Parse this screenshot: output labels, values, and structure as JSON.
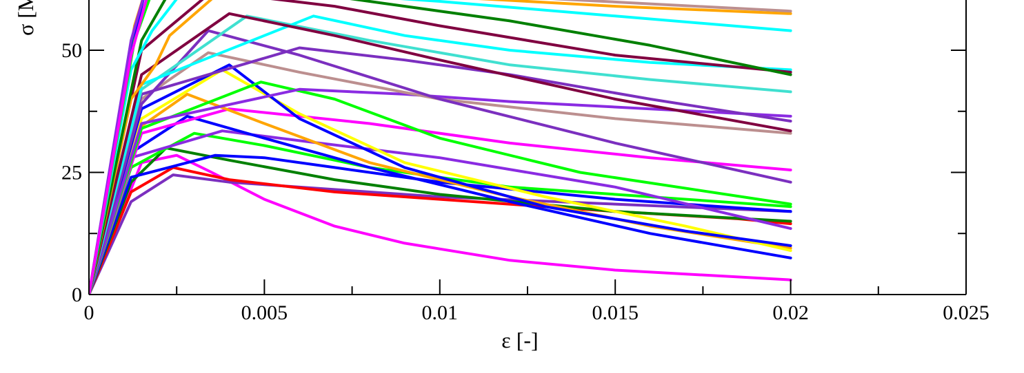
{
  "chart_data": {
    "type": "line",
    "title": "",
    "xlabel": "ε [-]",
    "ylabel": "σ [MPa]",
    "xlim": [
      0,
      0.025
    ],
    "ylim": [
      0,
      60
    ],
    "xticks": [
      0,
      0.005,
      0.01,
      0.015,
      0.02,
      0.025
    ],
    "xtick_labels": [
      "0",
      "0.005",
      "0.01",
      "0.015",
      "0.02",
      "0.025"
    ],
    "yticks": [
      0,
      25,
      50
    ],
    "ytick_labels": [
      "0",
      "25",
      "50"
    ],
    "grid": false,
    "legend": "none",
    "series": [
      {
        "color": "#ff00ff",
        "x": [
          0,
          0.0015,
          0.0025,
          0.0035,
          0.005,
          0.007,
          0.009,
          0.012,
          0.015,
          0.02
        ],
        "y": [
          0,
          27,
          28.5,
          25,
          19.5,
          14,
          10.5,
          7,
          5,
          3
        ]
      },
      {
        "color": "#7b2fbf",
        "x": [
          0,
          0.0012,
          0.0024,
          0.004,
          0.007,
          0.01,
          0.015,
          0.02
        ],
        "y": [
          0,
          19,
          24.5,
          23,
          21.5,
          20,
          18.5,
          17
        ]
      },
      {
        "color": "#ff0000",
        "x": [
          0,
          0.0012,
          0.0024,
          0.004,
          0.007,
          0.01,
          0.015,
          0.0185,
          0.02
        ],
        "y": [
          0,
          21,
          26,
          23.5,
          21,
          19.5,
          17,
          15.5,
          14.5
        ]
      },
      {
        "color": "#008000",
        "x": [
          0,
          0.0012,
          0.0022,
          0.004,
          0.007,
          0.01,
          0.015,
          0.02
        ],
        "y": [
          0,
          23,
          30,
          27.5,
          23.5,
          20.5,
          17,
          15
        ]
      },
      {
        "color": "#0000ff",
        "x": [
          0,
          0.0012,
          0.0036,
          0.005,
          0.007,
          0.01,
          0.015,
          0.02
        ],
        "y": [
          0,
          24,
          28.5,
          28,
          26,
          23,
          19.5,
          17
        ]
      },
      {
        "color": "#00ff00",
        "x": [
          0,
          0.0012,
          0.003,
          0.005,
          0.008,
          0.012,
          0.02
        ],
        "y": [
          0,
          26,
          33,
          30.5,
          26,
          22,
          18
        ]
      },
      {
        "color": "#8a2be2",
        "x": [
          0,
          0.0012,
          0.0038,
          0.006,
          0.01,
          0.015,
          0.02
        ],
        "y": [
          0,
          28,
          33.5,
          31.5,
          28,
          22,
          13.5
        ]
      },
      {
        "color": "#0000ff",
        "x": [
          0,
          0.0012,
          0.0028,
          0.005,
          0.008,
          0.012,
          0.016,
          0.02
        ],
        "y": [
          0,
          29,
          36.5,
          32,
          26,
          19,
          12.5,
          7.5
        ]
      },
      {
        "color": "#ff00ff",
        "x": [
          0,
          0.0015,
          0.004,
          0.008,
          0.012,
          0.016,
          0.02
        ],
        "y": [
          0,
          33,
          38,
          35,
          31,
          28,
          25.5
        ]
      },
      {
        "color": "#ffa500",
        "x": [
          0,
          0.0012,
          0.0028,
          0.005,
          0.008,
          0.012,
          0.016,
          0.02
        ],
        "y": [
          0,
          33,
          41,
          35,
          27,
          20,
          14,
          9.5
        ]
      },
      {
        "color": "#ffff00",
        "x": [
          0,
          0.0015,
          0.0038,
          0.006,
          0.009,
          0.013,
          0.017,
          0.02
        ],
        "y": [
          0,
          36,
          46,
          37,
          27,
          20,
          14,
          9
        ]
      },
      {
        "color": "#0000ff",
        "x": [
          0,
          0.0015,
          0.004,
          0.006,
          0.009,
          0.013,
          0.017,
          0.02
        ],
        "y": [
          0,
          38,
          47,
          36,
          26,
          18,
          13,
          10
        ]
      },
      {
        "color": "#00ff00",
        "x": [
          0,
          0.0015,
          0.0049,
          0.007,
          0.01,
          0.014,
          0.02
        ],
        "y": [
          0,
          34,
          43.5,
          40,
          32,
          25,
          18.5
        ]
      },
      {
        "color": "#8a2be2",
        "x": [
          0,
          0.0015,
          0.006,
          0.009,
          0.012,
          0.016,
          0.02
        ],
        "y": [
          0,
          35,
          42,
          41,
          39.5,
          38,
          36.5
        ]
      },
      {
        "color": "#bc8f8f",
        "x": [
          0,
          0.0015,
          0.0034,
          0.006,
          0.01,
          0.015,
          0.02
        ],
        "y": [
          0,
          40,
          49.5,
          45.5,
          40,
          36,
          33
        ]
      },
      {
        "color": "#7b2fbf",
        "x": [
          0,
          0.0015,
          0.0034,
          0.006,
          0.01,
          0.015,
          0.02
        ],
        "y": [
          0,
          39,
          54,
          49,
          40,
          31,
          23
        ]
      },
      {
        "color": "#7b2fbf",
        "x": [
          0,
          0.0015,
          0.006,
          0.009,
          0.012,
          0.016,
          0.02
        ],
        "y": [
          0,
          41,
          50.5,
          48,
          45,
          40,
          35.5
        ]
      },
      {
        "color": "#40e0d0",
        "x": [
          0,
          0.0015,
          0.0045,
          0.008,
          0.012,
          0.016,
          0.02
        ],
        "y": [
          0,
          42,
          57,
          52,
          47,
          44,
          41.5
        ]
      },
      {
        "color": "#00ffff",
        "x": [
          0,
          0.0015,
          0.0064,
          0.009,
          0.012,
          0.016,
          0.02
        ],
        "y": [
          0,
          43,
          57,
          53,
          50,
          47.5,
          46
        ]
      },
      {
        "color": "#800040",
        "x": [
          0,
          0.0015,
          0.004,
          0.007,
          0.01,
          0.015,
          0.02
        ],
        "y": [
          0,
          45,
          57.5,
          53,
          48,
          40,
          33.5
        ]
      },
      {
        "color": "#800040",
        "x": [
          0,
          0.0015,
          0.0035,
          0.007,
          0.01,
          0.015,
          0.02
        ],
        "y": [
          0,
          50,
          62,
          59,
          55,
          49,
          45.5
        ]
      },
      {
        "color": "#ffa500",
        "x": [
          0,
          0.0012,
          0.0019,
          0.0023,
          0.0035
        ],
        "y": [
          0,
          40,
          47,
          53,
          60.5
        ]
      },
      {
        "color": "#008000",
        "x": [
          0,
          0.0015,
          0.0023,
          0.007,
          0.012,
          0.016,
          0.02
        ],
        "y": [
          0,
          52,
          62,
          61,
          56,
          51,
          45
        ]
      },
      {
        "color": "#00ffff",
        "x": [
          0,
          0.0012,
          0.0018,
          0.0025
        ],
        "y": [
          0,
          46,
          54,
          60.5
        ]
      },
      {
        "color": "#ffa500",
        "x": [
          0,
          0.0013,
          0.0016,
          0.005,
          0.01,
          0.015,
          0.02
        ],
        "y": [
          0,
          55,
          62,
          62,
          61,
          59,
          57.5
        ]
      },
      {
        "color": "#bc8f8f",
        "x": [
          0,
          0.0013,
          0.0016,
          0.006,
          0.012,
          0.016,
          0.02
        ],
        "y": [
          0,
          54,
          62,
          62,
          61,
          59.5,
          58
        ]
      },
      {
        "color": "#00ffff",
        "x": [
          0,
          0.0013,
          0.0016,
          0.006,
          0.01,
          0.015,
          0.02
        ],
        "y": [
          0,
          54,
          62,
          62,
          60,
          57,
          54
        ]
      },
      {
        "color": "#0000ff",
        "x": [
          0,
          0.0012,
          0.0016
        ],
        "y": [
          0,
          50,
          62
        ]
      },
      {
        "color": "#8a2be2",
        "x": [
          0,
          0.0012,
          0.0016
        ],
        "y": [
          0,
          52,
          62
        ]
      },
      {
        "color": "#00ff00",
        "x": [
          0,
          0.0013,
          0.0018
        ],
        "y": [
          0,
          52,
          62
        ]
      },
      {
        "color": "#ff00ff",
        "x": [
          0,
          0.0012,
          0.0017
        ],
        "y": [
          0,
          49,
          62
        ]
      }
    ]
  }
}
